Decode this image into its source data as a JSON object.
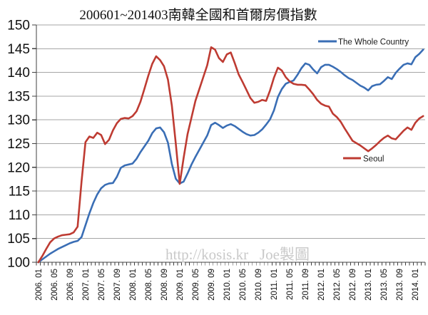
{
  "chart_data": {
    "type": "line",
    "title": "200601~201403南韓全國和首爾房價指數",
    "xlabel": "",
    "ylabel": "",
    "ylim": [
      100,
      150
    ],
    "ytick_step": 5,
    "grid": "horizontal",
    "legend_position": "inside-plot",
    "n_points": 99,
    "x_start": "2006.01",
    "x_end": "2014.03",
    "x_label_every": 4,
    "x_labels": [
      "2006. 01",
      "2006. 05",
      "2006. 09",
      "2007. 01",
      "2007. 05",
      "2007. 09",
      "2008. 01",
      "2008. 05",
      "2008. 09",
      "2009. 01",
      "2009. 05",
      "2009. 09",
      "2010. 01",
      "2010. 05",
      "2010. 09",
      "2011. 01",
      "2011. 05",
      "2011. 09",
      "2012. 01",
      "2012. 05",
      "2012. 09",
      "2013. 01",
      "2013. 05",
      "2013. 09",
      "2014. 01"
    ],
    "series": [
      {
        "name": "The Whole Country",
        "color": "#3a6eb5",
        "values": [
          100,
          100.6,
          101.2,
          101.8,
          102.3,
          102.8,
          103.2,
          103.6,
          104.0,
          104.3,
          104.5,
          105.3,
          107.8,
          110.3,
          112.5,
          114.3,
          115.6,
          116.3,
          116.6,
          116.7,
          118.0,
          119.9,
          120.4,
          120.6,
          120.8,
          121.8,
          123.2,
          124.4,
          125.6,
          127.2,
          128.2,
          128.4,
          127.4,
          125.2,
          120.7,
          117.6,
          116.6,
          117.0,
          118.7,
          120.6,
          122.2,
          123.7,
          125.2,
          126.7,
          128.9,
          129.4,
          128.9,
          128.3,
          128.8,
          129.1,
          128.7,
          128.1,
          127.5,
          127.0,
          126.7,
          126.8,
          127.3,
          128.0,
          129.0,
          130.1,
          132.0,
          134.8,
          136.5,
          137.6,
          138.0,
          138.3,
          139.5,
          140.9,
          141.9,
          141.6,
          140.6,
          139.8,
          141.1,
          141.6,
          141.6,
          141.2,
          140.7,
          140.1,
          139.4,
          138.8,
          138.4,
          137.8,
          137.2,
          136.8,
          136.2,
          137.1,
          137.4,
          137.5,
          138.2,
          139.0,
          138.6,
          139.9,
          140.8,
          141.6,
          141.9,
          141.7,
          143.2,
          143.9,
          144.8
        ]
      },
      {
        "name": "Seoul",
        "color": "#be3b32",
        "values": [
          100,
          101.3,
          102.8,
          104.2,
          105.0,
          105.4,
          105.7,
          105.8,
          105.9,
          106.3,
          107.5,
          117.0,
          125.3,
          126.5,
          126.2,
          127.3,
          126.8,
          124.9,
          125.8,
          127.8,
          129.3,
          130.2,
          130.4,
          130.3,
          130.8,
          131.8,
          133.8,
          136.5,
          139.3,
          141.8,
          143.4,
          142.6,
          141.3,
          138.5,
          133.0,
          125.0,
          116.5,
          122.0,
          127.0,
          130.5,
          134.0,
          136.5,
          139.0,
          141.5,
          145.3,
          144.8,
          143.0,
          142.2,
          143.8,
          144.2,
          142.0,
          139.6,
          138.0,
          136.3,
          134.6,
          133.6,
          133.8,
          134.2,
          134.0,
          136.2,
          138.9,
          141.0,
          140.4,
          139.0,
          138.1,
          137.6,
          137.4,
          137.4,
          137.3,
          136.4,
          135.4,
          134.2,
          133.4,
          133.0,
          132.8,
          131.3,
          130.6,
          129.6,
          128.2,
          126.9,
          125.6,
          125.1,
          124.6,
          124.0,
          123.4,
          124.0,
          124.7,
          125.5,
          126.2,
          126.7,
          126.1,
          125.9,
          126.8,
          127.7,
          128.4,
          127.9,
          129.4,
          130.3,
          130.8
        ]
      }
    ],
    "watermark": "http://kosis.kr",
    "credit": "Joe製圖",
    "colors": {
      "grid": "#a6a6a6",
      "axis": "#404040",
      "title": "#111111",
      "watermark": "#c9c9c9"
    }
  }
}
